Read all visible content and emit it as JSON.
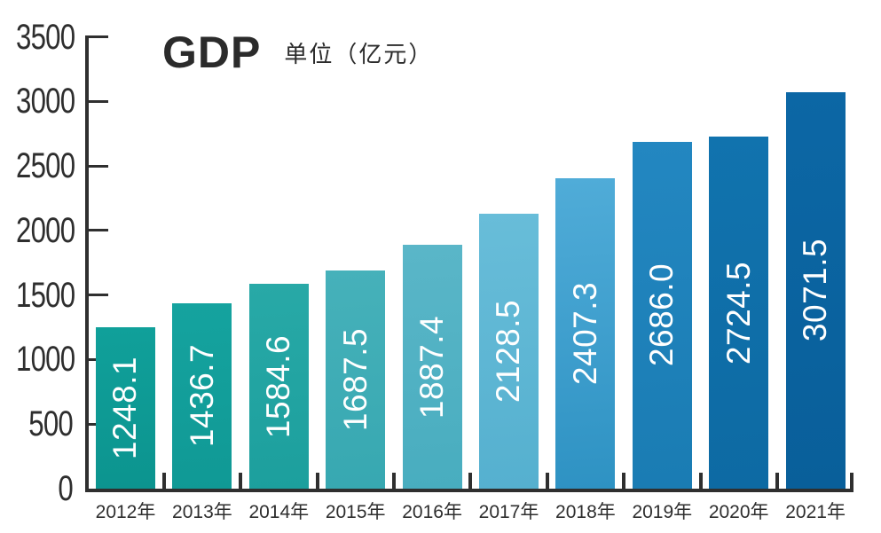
{
  "title": "GDP",
  "subtitle": "单位（亿元）",
  "chart_data": {
    "type": "bar",
    "title": "GDP",
    "unit_label": "单位（亿元）",
    "categories": [
      "2012年",
      "2013年",
      "2014年",
      "2015年",
      "2016年",
      "2017年",
      "2018年",
      "2019年",
      "2020年",
      "2021年"
    ],
    "values": [
      1248.1,
      1436.7,
      1584.6,
      1687.5,
      1887.4,
      2128.5,
      2407.3,
      2686.0,
      2724.5,
      3071.5
    ],
    "value_labels": [
      "1248.1",
      "1436.7",
      "1584.6",
      "1687.5",
      "1887.4",
      "2128.5",
      "2407.3",
      "2686.0",
      "2724.5",
      "3071.5"
    ],
    "bar_colors": [
      {
        "top": "#10a09a",
        "bottom": "#0c948f"
      },
      {
        "top": "#15a39f",
        "bottom": "#109995"
      },
      {
        "top": "#28a9a7",
        "bottom": "#1c9f9d"
      },
      {
        "top": "#46b1ba",
        "bottom": "#37a8b1"
      },
      {
        "top": "#5ab6c8",
        "bottom": "#48adbf"
      },
      {
        "top": "#68bdd9",
        "bottom": "#55b0cf"
      },
      {
        "top": "#50acd8",
        "bottom": "#2e92c3"
      },
      {
        "top": "#2387c1",
        "bottom": "#1a7cb3"
      },
      {
        "top": "#1173ae",
        "bottom": "#0d6aa3"
      },
      {
        "top": "#0c67a5",
        "bottom": "#095f9a"
      }
    ],
    "ylim": [
      0,
      3500
    ],
    "yticks": [
      0,
      500,
      1000,
      1500,
      2000,
      2500,
      3000,
      3500
    ],
    "grid": false,
    "legend": "none",
    "xlabel": "",
    "ylabel": "",
    "value_label_color": "#ffffff",
    "axis_color": "#2f2f2f",
    "text_color": "#2e2e2e"
  }
}
